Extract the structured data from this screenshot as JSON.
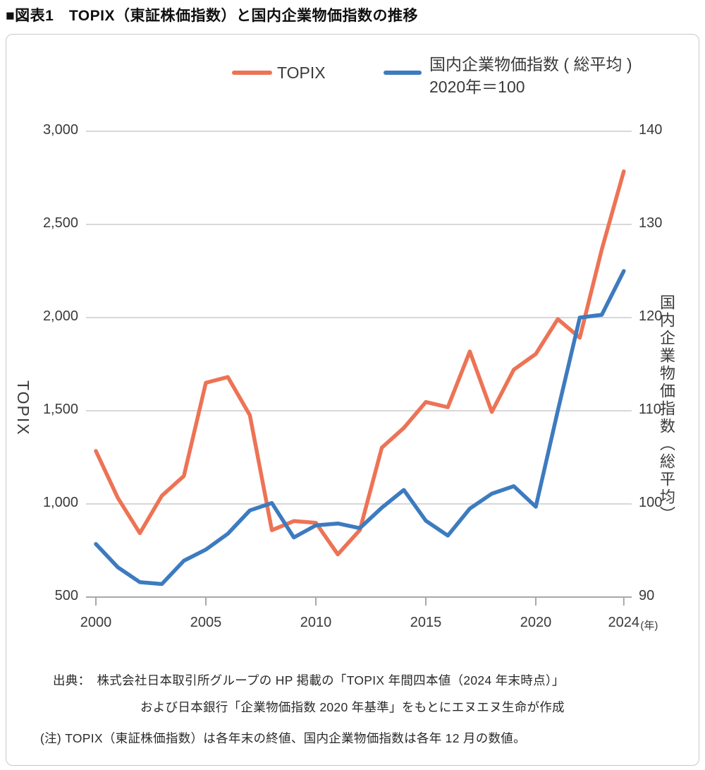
{
  "title": "■図表1　TOPIX（東証株価指数）と国内企業物価指数の推移",
  "legend": {
    "topix_label": "TOPIX",
    "cgpi_line1": "国内企業物価指数 ( 総平均 )",
    "cgpi_line2": "2020年＝100"
  },
  "footer": {
    "source_line1": "出典：　株式会社日本取引所グループの HP 掲載の「TOPIX 年間四本値（2024 年末時点）」",
    "source_line2": "および日本銀行「企業物価指数 2020 年基準」をもとにエヌエヌ生命が作成",
    "note": "(注) TOPIX（東証株価指数）は各年末の終値、国内企業物価指数は各年 12 月の数値。"
  },
  "chart_data": {
    "type": "line",
    "title": "TOPIX（東証株価指数）と国内企業物価指数の推移",
    "grid": true,
    "legend_position": "top",
    "x": [
      2000,
      2001,
      2002,
      2003,
      2004,
      2005,
      2006,
      2007,
      2008,
      2009,
      2010,
      2011,
      2012,
      2013,
      2014,
      2015,
      2016,
      2017,
      2018,
      2019,
      2020,
      2021,
      2022,
      2023,
      2024
    ],
    "series": [
      {
        "name": "TOPIX",
        "axis": "left",
        "color": "#ED7355",
        "values": [
          1284,
          1032,
          843,
          1044,
          1150,
          1650,
          1681,
          1476,
          859,
          908,
          899,
          729,
          860,
          1302,
          1408,
          1547,
          1519,
          1818,
          1494,
          1721,
          1805,
          1992,
          1892,
          2366,
          2785
        ]
      },
      {
        "name": "国内企業物価指数（総平均）2020年＝100",
        "axis": "right",
        "color": "#3D7BBF",
        "values": [
          95.7,
          93.2,
          91.6,
          91.4,
          93.9,
          95.1,
          96.8,
          99.3,
          100.1,
          96.4,
          97.7,
          97.9,
          97.4,
          99.6,
          101.5,
          98.2,
          96.6,
          99.5,
          101.1,
          101.9,
          99.7,
          110.0,
          120.0,
          120.3,
          125.0
        ]
      }
    ],
    "left_axis": {
      "title": "TOPIX",
      "range": [
        500,
        3000
      ],
      "ticks": [
        {
          "label": "3,000",
          "value": 3000
        },
        {
          "label": "2,500",
          "value": 2500
        },
        {
          "label": "2,000",
          "value": 2000
        },
        {
          "label": "1,500",
          "value": 1500
        },
        {
          "label": "1,000",
          "value": 1000
        },
        {
          "label": "500",
          "value": 500
        }
      ]
    },
    "right_axis": {
      "title": "国内企業物価指数（総平均）",
      "range": [
        90,
        140
      ],
      "ticks": [
        {
          "label": "140",
          "value": 140
        },
        {
          "label": "130",
          "value": 130
        },
        {
          "label": "120",
          "value": 120
        },
        {
          "label": "110",
          "value": 110
        },
        {
          "label": "100",
          "value": 100
        },
        {
          "label": "90",
          "value": 90
        }
      ]
    },
    "x_axis": {
      "ticks": [
        {
          "label": "2000",
          "value": 2000
        },
        {
          "label": "2005",
          "value": 2005
        },
        {
          "label": "2010",
          "value": 2010
        },
        {
          "label": "2015",
          "value": 2015
        },
        {
          "label": "2020",
          "value": 2020
        },
        {
          "label": "2024",
          "value": 2024,
          "suffix": "(年)"
        }
      ]
    }
  }
}
